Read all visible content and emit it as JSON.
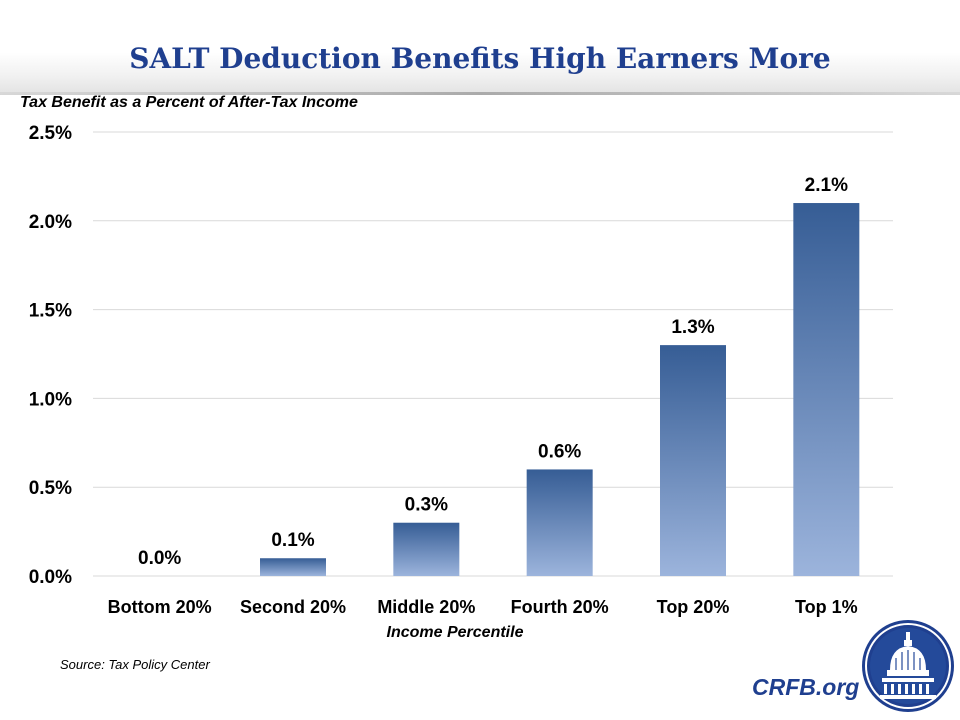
{
  "header": {
    "title": "SALT Deduction Benefits High Earners More"
  },
  "footer": {
    "source": "Source: Tax Policy Center",
    "site": "CRFB.org"
  },
  "colors": {
    "title": "#1f3f8f",
    "bar_top": "#365d95",
    "bar_bottom": "#9cb4dc",
    "grid": "#d9d9d9"
  },
  "icons": {
    "logo": "capitol-dome-seal-icon"
  },
  "chart_data": {
    "type": "bar",
    "title": "SALT Deduction Benefits High Earners More",
    "ylabel": "Tax Benefit as a Percent of After-Tax Income",
    "xlabel": "Income Percentile",
    "categories": [
      "Bottom 20%",
      "Second 20%",
      "Middle 20%",
      "Fourth 20%",
      "Top 20%",
      "Top 1%"
    ],
    "values": [
      0.0,
      0.1,
      0.3,
      0.6,
      1.3,
      2.1
    ],
    "data_labels": [
      "0.0%",
      "0.1%",
      "0.3%",
      "0.6%",
      "1.3%",
      "2.1%"
    ],
    "ylim": [
      0,
      2.5
    ],
    "yticks": [
      0,
      0.5,
      1.0,
      1.5,
      2.0,
      2.5
    ],
    "ytick_labels": [
      "0.0%",
      "0.5%",
      "1.0%",
      "1.5%",
      "2.0%",
      "2.5%"
    ],
    "grid": true,
    "legend": "none"
  }
}
